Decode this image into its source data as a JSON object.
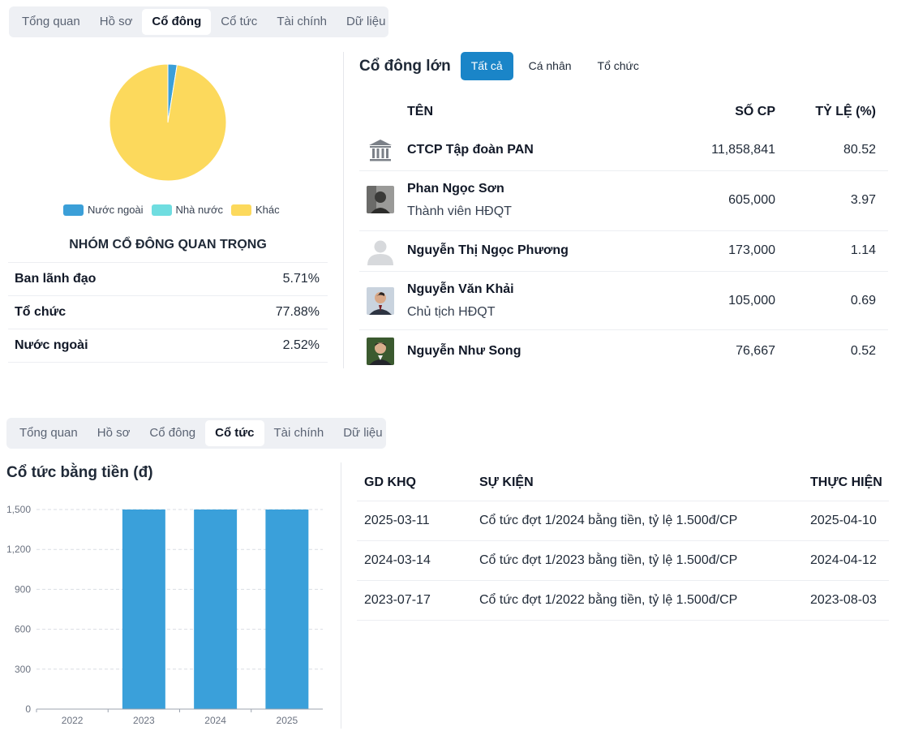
{
  "tabs_top": [
    "Tổng quan",
    "Hồ sơ",
    "Cổ đông",
    "Cổ tức",
    "Tài chính",
    "Dữ liệu"
  ],
  "tabs_top_active": "Cổ đông",
  "tabs_bottom": [
    "Tổng quan",
    "Hồ sơ",
    "Cổ đông",
    "Cổ tức",
    "Tài chính",
    "Dữ liệu"
  ],
  "tabs_bottom_active": "Cổ tức",
  "ownership_pie": {
    "slices": [
      {
        "label": "Nước ngoài",
        "value": 2.52,
        "color": "#3b9fd8"
      },
      {
        "label": "Nhà nước",
        "value": 0,
        "color": "#6fdde0"
      },
      {
        "label": "Khác",
        "value": 97.48,
        "color": "#fcd95c"
      }
    ]
  },
  "key_groups": {
    "title": "NHÓM CỔ ĐÔNG QUAN TRỌNG",
    "rows": [
      {
        "name": "Ban lãnh đạo",
        "value": "5.71%"
      },
      {
        "name": "Tổ chức",
        "value": "77.88%"
      },
      {
        "name": "Nước ngoài",
        "value": "2.52%"
      }
    ]
  },
  "major_shareholders": {
    "title": "Cổ đông lớn",
    "filters": [
      "Tất cả",
      "Cá nhân",
      "Tổ chức"
    ],
    "active_filter": "Tất cả",
    "columns": {
      "name": "TÊN",
      "shares": "SỐ CP",
      "pct": "TỶ LỆ (%)"
    },
    "rows": [
      {
        "name": "CTCP Tập đoàn PAN",
        "role": "",
        "shares": "11,858,841",
        "pct": "80.52",
        "icon": "bank-icon"
      },
      {
        "name": "Phan Ngọc Sơn",
        "role": "Thành viên HĐQT",
        "shares": "605,000",
        "pct": "3.97",
        "icon": "photo"
      },
      {
        "name": "Nguyễn Thị Ngọc Phương",
        "role": "",
        "shares": "173,000",
        "pct": "1.14",
        "icon": "user-placeholder-icon"
      },
      {
        "name": "Nguyễn Văn Khải",
        "role": "Chủ tịch HĐQT",
        "shares": "105,000",
        "pct": "0.69",
        "icon": "photo"
      },
      {
        "name": "Nguyễn Như Song",
        "role": "",
        "shares": "76,667",
        "pct": "0.52",
        "icon": "photo"
      }
    ]
  },
  "dividend": {
    "title": "Cổ tức bằng tiền (đ)",
    "columns": {
      "date": "GD KHQ",
      "event": "SỰ KIỆN",
      "exec": "THỰC HIỆN"
    },
    "rows": [
      {
        "date": "2025-03-11",
        "event": "Cổ tức đợt 1/2024 bằng tiền, tỷ lệ 1.500đ/CP",
        "exec": "2025-04-10"
      },
      {
        "date": "2024-03-14",
        "event": "Cổ tức đợt 1/2023 bằng tiền, tỷ lệ 1.500đ/CP",
        "exec": "2024-04-12"
      },
      {
        "date": "2023-07-17",
        "event": "Cổ tức đợt 1/2022 bằng tiền, tỷ lệ 1.500đ/CP",
        "exec": "2023-08-03"
      }
    ]
  },
  "chart_data": {
    "type": "bar",
    "title": "Cổ tức bằng tiền (đ)",
    "categories": [
      "2022",
      "2023",
      "2024",
      "2025"
    ],
    "values": [
      0,
      1500,
      1500,
      1500
    ],
    "yticks": [
      "0",
      "300",
      "600",
      "900",
      "1,200",
      "1,500"
    ],
    "ylim": [
      0,
      1500
    ],
    "xlabel": "",
    "ylabel": "",
    "grid": true,
    "bar_color": "#3aa0da"
  }
}
